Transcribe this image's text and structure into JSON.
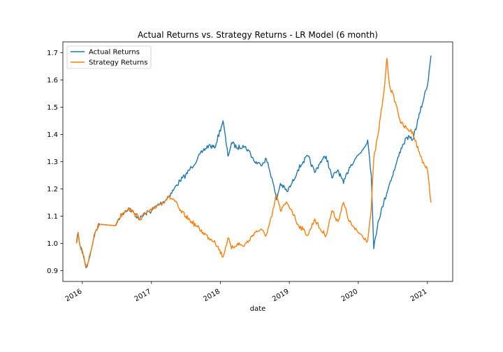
{
  "chart_data": {
    "type": "line",
    "title": "Actual Returns vs. Strategy Returns - LR Model (6 month)",
    "xlabel": "date",
    "ylabel": "",
    "x_ticks": [
      "2016",
      "2017",
      "2018",
      "2019",
      "2020",
      "2021"
    ],
    "y_ticks": [
      "0.9",
      "1.0",
      "1.1",
      "1.2",
      "1.3",
      "1.4",
      "1.5",
      "1.6",
      "1.7"
    ],
    "xlim": [
      "2015-09-20",
      "2021-05-15"
    ],
    "ylim": [
      0.86,
      1.74
    ],
    "grid": false,
    "legend_position": "upper-left",
    "series": [
      {
        "name": "Actual Returns",
        "color": "#1f77b4",
        "points": [
          [
            "2015-12-01",
            1.0
          ],
          [
            "2015-12-10",
            1.04
          ],
          [
            "2015-12-20",
            0.99
          ],
          [
            "2016-01-05",
            0.96
          ],
          [
            "2016-01-20",
            0.91
          ],
          [
            "2016-02-01",
            0.93
          ],
          [
            "2016-02-15",
            0.97
          ],
          [
            "2016-03-01",
            1.02
          ],
          [
            "2016-03-15",
            1.05
          ],
          [
            "2016-04-01",
            1.07
          ],
          [
            "2016-06-25",
            1.065
          ],
          [
            "2016-07-10",
            1.09
          ],
          [
            "2016-08-01",
            1.11
          ],
          [
            "2016-09-01",
            1.13
          ],
          [
            "2016-10-01",
            1.11
          ],
          [
            "2016-11-01",
            1.09
          ],
          [
            "2016-12-01",
            1.11
          ],
          [
            "2017-01-01",
            1.12
          ],
          [
            "2017-02-01",
            1.14
          ],
          [
            "2017-03-01",
            1.15
          ],
          [
            "2017-04-01",
            1.17
          ],
          [
            "2017-05-01",
            1.2
          ],
          [
            "2017-06-01",
            1.23
          ],
          [
            "2017-07-01",
            1.25
          ],
          [
            "2017-08-01",
            1.28
          ],
          [
            "2017-09-01",
            1.31
          ],
          [
            "2017-10-01",
            1.34
          ],
          [
            "2017-11-01",
            1.36
          ],
          [
            "2017-12-01",
            1.35
          ],
          [
            "2018-01-15",
            1.45
          ],
          [
            "2018-02-10",
            1.32
          ],
          [
            "2018-03-01",
            1.37
          ],
          [
            "2018-04-01",
            1.35
          ],
          [
            "2018-05-01",
            1.36
          ],
          [
            "2018-06-01",
            1.34
          ],
          [
            "2018-07-01",
            1.3
          ],
          [
            "2018-08-01",
            1.29
          ],
          [
            "2018-09-01",
            1.31
          ],
          [
            "2018-10-01",
            1.24
          ],
          [
            "2018-10-25",
            1.16
          ],
          [
            "2018-11-15",
            1.22
          ],
          [
            "2018-12-20",
            1.19
          ],
          [
            "2019-01-15",
            1.22
          ],
          [
            "2019-02-15",
            1.27
          ],
          [
            "2019-03-15",
            1.3
          ],
          [
            "2019-04-10",
            1.32
          ],
          [
            "2019-05-15",
            1.26
          ],
          [
            "2019-06-15",
            1.3
          ],
          [
            "2019-07-15",
            1.32
          ],
          [
            "2019-08-15",
            1.24
          ],
          [
            "2019-09-15",
            1.27
          ],
          [
            "2019-10-15",
            1.22
          ],
          [
            "2019-11-15",
            1.28
          ],
          [
            "2019-12-15",
            1.31
          ],
          [
            "2020-01-20",
            1.34
          ],
          [
            "2020-02-20",
            1.38
          ],
          [
            "2020-03-10",
            1.25
          ],
          [
            "2020-03-23",
            0.98
          ],
          [
            "2020-04-15",
            1.08
          ],
          [
            "2020-05-15",
            1.15
          ],
          [
            "2020-06-15",
            1.22
          ],
          [
            "2020-07-15",
            1.28
          ],
          [
            "2020-08-15",
            1.35
          ],
          [
            "2020-09-15",
            1.39
          ],
          [
            "2020-10-15",
            1.38
          ],
          [
            "2020-11-15",
            1.46
          ],
          [
            "2020-12-15",
            1.54
          ],
          [
            "2021-01-01",
            1.58
          ],
          [
            "2021-01-20",
            1.69
          ]
        ]
      },
      {
        "name": "Strategy Returns",
        "color": "#ff7f0e",
        "points": [
          [
            "2015-12-01",
            1.0
          ],
          [
            "2015-12-10",
            1.04
          ],
          [
            "2015-12-20",
            0.99
          ],
          [
            "2016-01-05",
            0.96
          ],
          [
            "2016-01-20",
            0.91
          ],
          [
            "2016-02-01",
            0.93
          ],
          [
            "2016-02-15",
            0.97
          ],
          [
            "2016-03-01",
            1.02
          ],
          [
            "2016-03-15",
            1.05
          ],
          [
            "2016-04-01",
            1.07
          ],
          [
            "2016-06-25",
            1.065
          ],
          [
            "2016-07-10",
            1.09
          ],
          [
            "2016-08-01",
            1.11
          ],
          [
            "2016-09-01",
            1.13
          ],
          [
            "2016-10-01",
            1.11
          ],
          [
            "2016-11-01",
            1.09
          ],
          [
            "2016-12-01",
            1.11
          ],
          [
            "2017-01-01",
            1.12
          ],
          [
            "2017-02-01",
            1.14
          ],
          [
            "2017-03-01",
            1.15
          ],
          [
            "2017-04-01",
            1.17
          ],
          [
            "2017-05-01",
            1.16
          ],
          [
            "2017-06-01",
            1.12
          ],
          [
            "2017-07-01",
            1.1
          ],
          [
            "2017-08-01",
            1.08
          ],
          [
            "2017-09-01",
            1.06
          ],
          [
            "2017-10-01",
            1.04
          ],
          [
            "2017-11-01",
            1.02
          ],
          [
            "2017-12-01",
            1.01
          ],
          [
            "2018-01-15",
            0.95
          ],
          [
            "2018-02-10",
            1.02
          ],
          [
            "2018-03-01",
            0.98
          ],
          [
            "2018-04-01",
            1.0
          ],
          [
            "2018-05-01",
            0.99
          ],
          [
            "2018-06-01",
            1.01
          ],
          [
            "2018-07-01",
            1.04
          ],
          [
            "2018-08-01",
            1.05
          ],
          [
            "2018-09-01",
            1.03
          ],
          [
            "2018-10-01",
            1.1
          ],
          [
            "2018-10-25",
            1.18
          ],
          [
            "2018-11-15",
            1.12
          ],
          [
            "2018-12-20",
            1.15
          ],
          [
            "2019-01-15",
            1.12
          ],
          [
            "2019-02-15",
            1.07
          ],
          [
            "2019-03-15",
            1.05
          ],
          [
            "2019-04-10",
            1.03
          ],
          [
            "2019-05-15",
            1.09
          ],
          [
            "2019-06-15",
            1.05
          ],
          [
            "2019-07-15",
            1.03
          ],
          [
            "2019-08-15",
            1.12
          ],
          [
            "2019-09-15",
            1.08
          ],
          [
            "2019-10-15",
            1.15
          ],
          [
            "2019-11-15",
            1.08
          ],
          [
            "2019-12-15",
            1.05
          ],
          [
            "2020-01-20",
            1.03
          ],
          [
            "2020-02-20",
            1.01
          ],
          [
            "2020-03-10",
            1.13
          ],
          [
            "2020-03-23",
            1.31
          ],
          [
            "2020-04-15",
            1.4
          ],
          [
            "2020-05-15",
            1.55
          ],
          [
            "2020-06-01",
            1.68
          ],
          [
            "2020-06-15",
            1.58
          ],
          [
            "2020-07-15",
            1.52
          ],
          [
            "2020-08-15",
            1.44
          ],
          [
            "2020-09-15",
            1.42
          ],
          [
            "2020-10-15",
            1.41
          ],
          [
            "2020-11-15",
            1.34
          ],
          [
            "2020-12-15",
            1.29
          ],
          [
            "2021-01-01",
            1.27
          ],
          [
            "2021-01-20",
            1.15
          ]
        ]
      }
    ]
  }
}
